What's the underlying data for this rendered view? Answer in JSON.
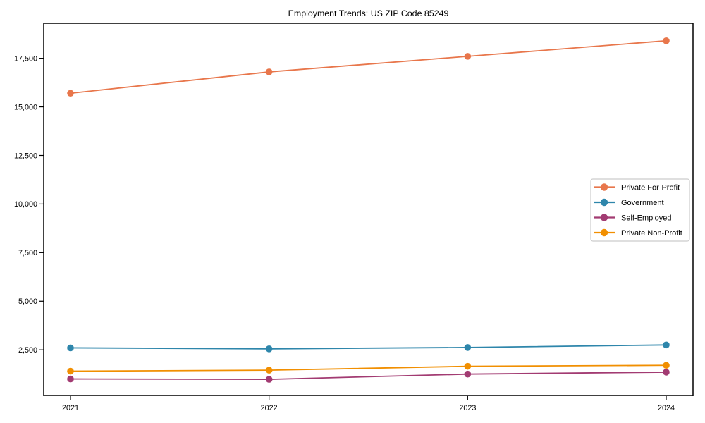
{
  "page": {
    "background_color": "#ffffff"
  },
  "chart_data": {
    "type": "line",
    "title": "Employment Trends: US ZIP Code 85249",
    "x": [
      2021,
      2022,
      2023,
      2024
    ],
    "xtick_labels": [
      "2021",
      "2022",
      "2023",
      "2024"
    ],
    "xlabel": "",
    "ylabel": "",
    "ylim": [
      150,
      19300
    ],
    "yticks": [
      2500,
      5000,
      7500,
      10000,
      12500,
      15000,
      17500
    ],
    "ytick_labels": [
      "2,500",
      "5,000",
      "7,500",
      "10,000",
      "12,500",
      "15,000",
      "17,500"
    ],
    "grid": false,
    "marker": "circle",
    "axis_color": "#000000",
    "legend": {
      "position": "center-right",
      "border_color": "#cccccc",
      "background": "#ffffff"
    },
    "series": [
      {
        "name": "Private For-Profit",
        "color": "#E8764B",
        "values": [
          15700,
          16800,
          17600,
          18400
        ]
      },
      {
        "name": "Government",
        "color": "#2E86AB",
        "values": [
          2600,
          2550,
          2620,
          2750
        ]
      },
      {
        "name": "Self-Employed",
        "color": "#A23B72",
        "values": [
          1000,
          980,
          1250,
          1350
        ]
      },
      {
        "name": "Private Non-Profit",
        "color": "#F18F01",
        "values": [
          1400,
          1450,
          1650,
          1700
        ]
      }
    ]
  }
}
